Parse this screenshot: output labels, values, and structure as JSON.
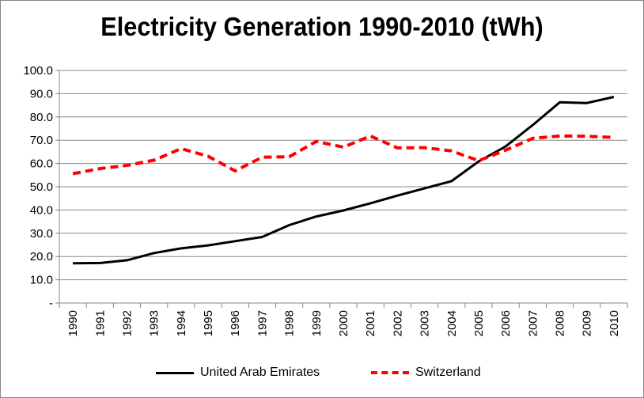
{
  "chart_data": {
    "type": "line",
    "title": "Electricity Generation 1990-2010 (tWh)",
    "xlabel": "",
    "ylabel": "",
    "ylim": [
      0,
      100
    ],
    "yticks": [
      "-",
      "10.0",
      "20.0",
      "30.0",
      "40.0",
      "50.0",
      "60.0",
      "70.0",
      "80.0",
      "90.0",
      "100.0"
    ],
    "categories": [
      "1990",
      "1991",
      "1992",
      "1993",
      "1994",
      "1995",
      "1996",
      "1997",
      "1998",
      "1999",
      "2000",
      "2001",
      "2002",
      "2003",
      "2004",
      "2005",
      "2006",
      "2007",
      "2008",
      "2009",
      "2010"
    ],
    "series": [
      {
        "name": "United Arab Emirates",
        "color": "#000000",
        "style": "solid",
        "values": [
          17.1,
          17.2,
          18.4,
          21.5,
          23.5,
          24.8,
          26.6,
          28.4,
          33.5,
          37.2,
          39.8,
          42.9,
          46.2,
          49.3,
          52.4,
          60.9,
          67.3,
          76.5,
          86.3,
          86.0,
          88.6
        ]
      },
      {
        "name": "Switzerland",
        "color": "#ff0000",
        "style": "dashed",
        "values": [
          55.6,
          57.8,
          59.2,
          61.4,
          66.4,
          63.1,
          56.8,
          62.7,
          62.9,
          69.5,
          67.0,
          71.8,
          66.7,
          66.8,
          65.4,
          61.2,
          65.7,
          70.8,
          71.8,
          71.7,
          71.2
        ]
      }
    ],
    "grid": true,
    "legend_position": "bottom"
  }
}
